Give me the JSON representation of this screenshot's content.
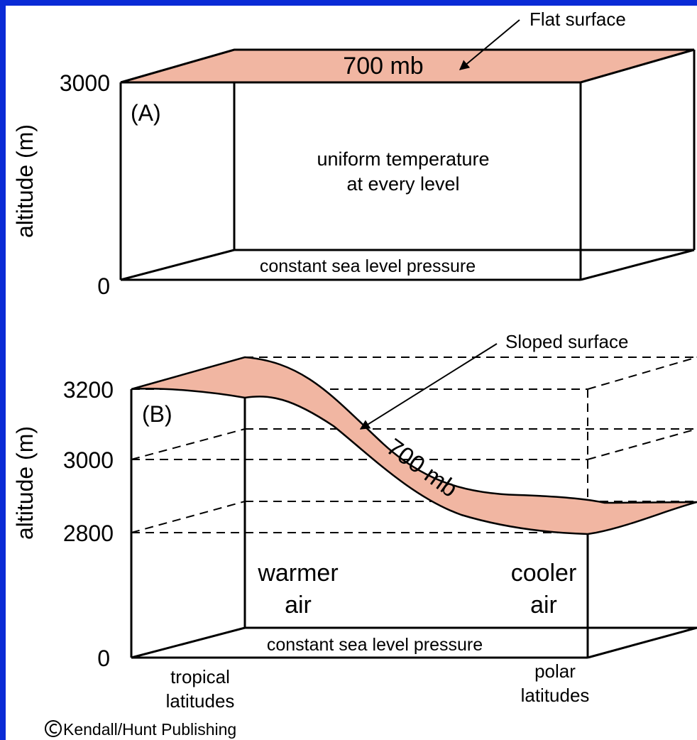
{
  "panelA": {
    "ylabel": "altitude (m)",
    "tick_top": "3000",
    "tick_bottom": "0",
    "panel_label": "(A)",
    "surface_label": "700 mb",
    "callout": "Flat surface",
    "center_line1": "uniform temperature",
    "center_line2": "at every level",
    "base_label": "constant sea level pressure"
  },
  "panelB": {
    "ylabel": "altitude (m)",
    "tick_3200": "3200",
    "tick_3000": "3000",
    "tick_2800": "2800",
    "tick_0": "0",
    "panel_label": "(B)",
    "callout": "Sloped surface",
    "surface_label": "700 mb",
    "warm_line1": "warmer",
    "warm_line2": "air",
    "cool_line1": "cooler",
    "cool_line2": "air",
    "base_label": "constant sea level pressure",
    "left_lat_line1": "tropical",
    "left_lat_line2": "latitudes",
    "right_lat_line1": "polar",
    "right_lat_line2": "latitudes"
  },
  "copyright": "Kendall/Hunt Publishing",
  "colors": {
    "border": "#0a2bd6",
    "surface_fill": "#f1b6a2",
    "line": "#000000"
  }
}
